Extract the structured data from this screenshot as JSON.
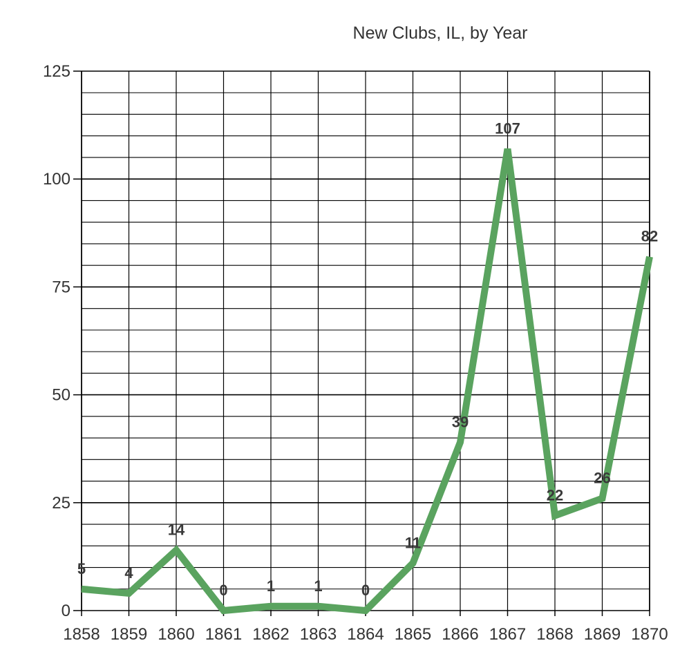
{
  "chart_data": {
    "type": "line",
    "title": "New Clubs, IL, by Year",
    "xlabel": "",
    "ylabel": "",
    "x": [
      "1858",
      "1859",
      "1860",
      "1861",
      "1862",
      "1863",
      "1864",
      "1865",
      "1866",
      "1867",
      "1868",
      "1869",
      "1870"
    ],
    "series": [
      {
        "values": [
          5,
          4,
          14,
          0,
          1,
          1,
          0,
          11,
          39,
          107,
          22,
          26,
          82
        ],
        "labels": [
          "5",
          "4",
          "14",
          "0",
          "1",
          "1",
          "0",
          "11",
          "39",
          "107",
          "22",
          "26",
          "82"
        ],
        "color": "#5aa35f"
      }
    ],
    "ylim": [
      0,
      125
    ],
    "y_ticks": [
      "0",
      "25",
      "50",
      "75",
      "100",
      "125"
    ],
    "y_tick_values": [
      0,
      25,
      50,
      75,
      100,
      125
    ],
    "minor_y_step": 5,
    "grid": true,
    "legend": "none",
    "grid_color": "#000000"
  }
}
